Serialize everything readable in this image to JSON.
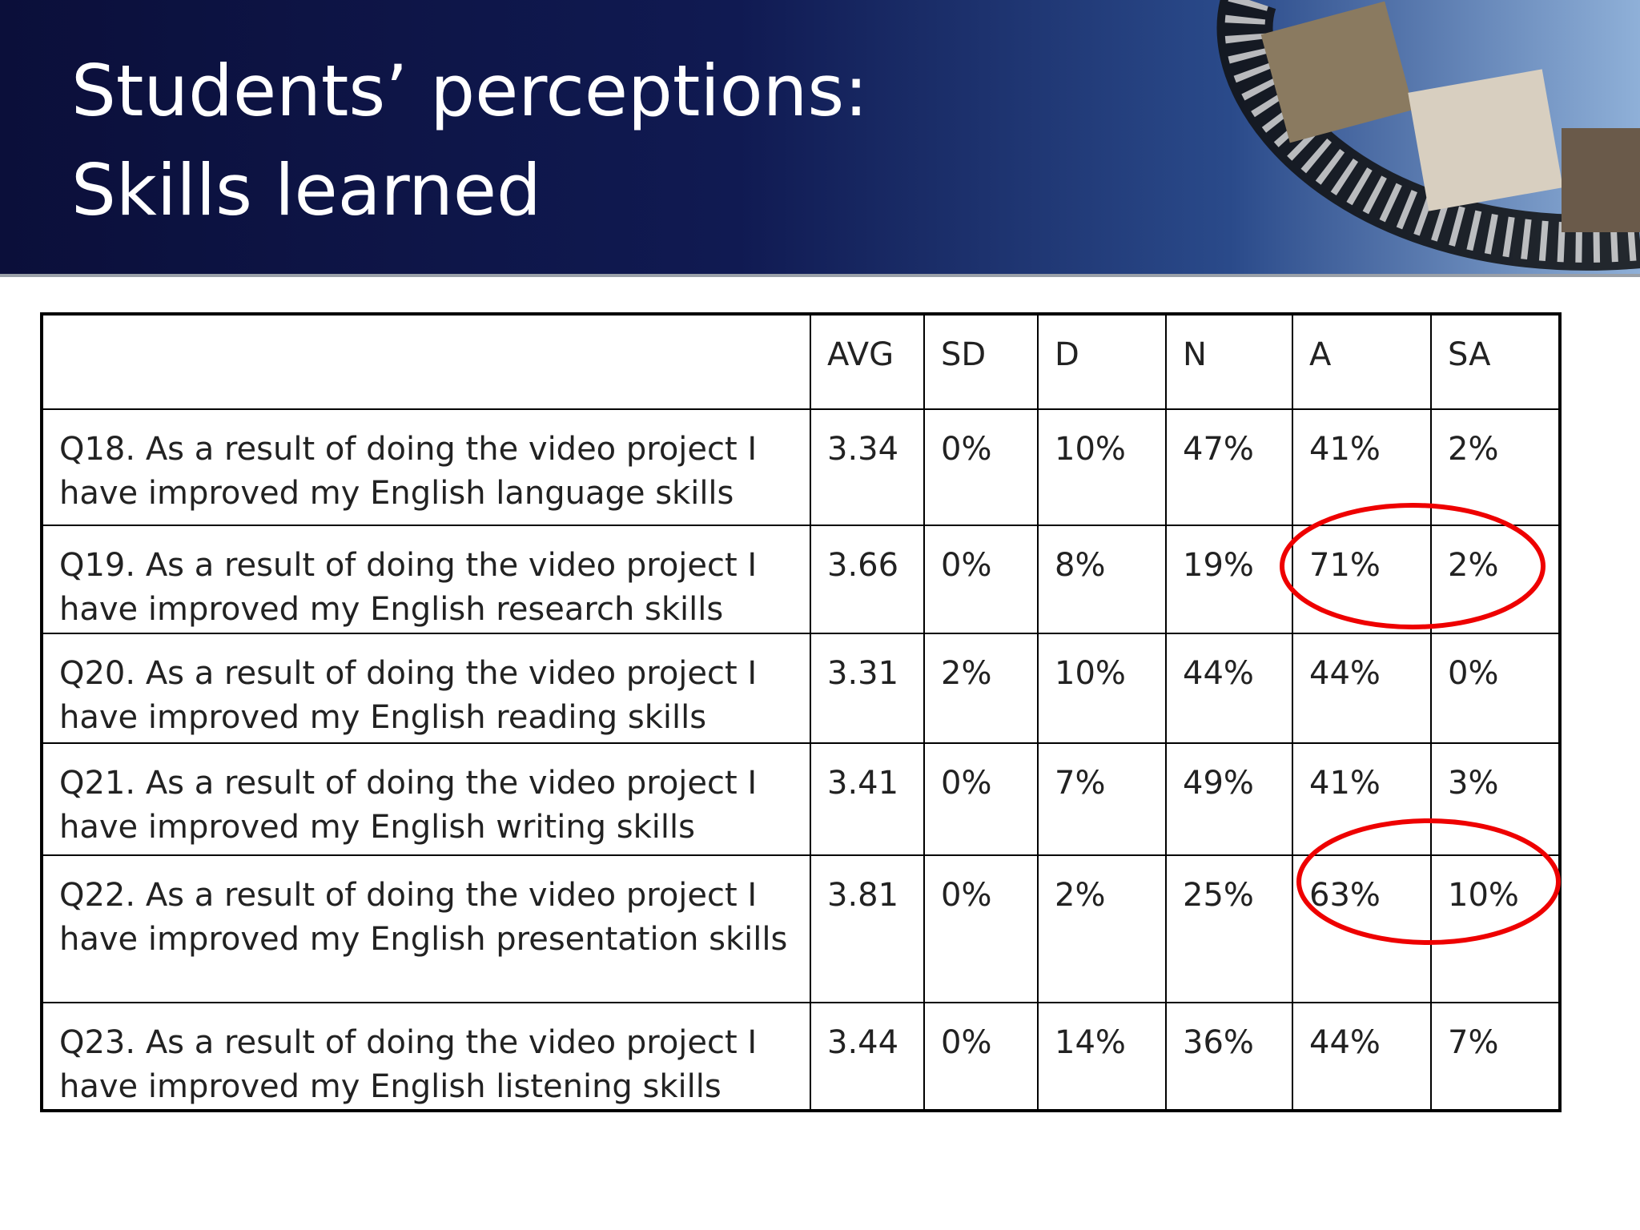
{
  "header": {
    "title": "Students’ perceptions: Skills learned"
  },
  "table": {
    "columns": [
      "AVG",
      "SD",
      "D",
      "N",
      "A",
      "SA"
    ],
    "rows": [
      [
        "Q18. As a result of doing the video project I have improved my English language skills",
        "3.34",
        "0%",
        "10%",
        "47%",
        "41%",
        "2%"
      ],
      [
        "Q19. As a result of doing the video project I have improved my English research skills",
        "3.66",
        "0%",
        "8%",
        "19%",
        "71%",
        "2%"
      ],
      [
        "Q20. As a result of doing the video project I have improved my English reading skills",
        "3.31",
        "2%",
        "10%",
        "44%",
        "44%",
        "0%"
      ],
      [
        "Q21. As a result of doing the video project I have improved my English writing skills",
        "3.41",
        "0%",
        "7%",
        "49%",
        "41%",
        "3%"
      ],
      [
        "Q22. As a result of doing the video project I have improved my English presentation skills",
        "3.81",
        "0%",
        "2%",
        "25%",
        "63%",
        "10%"
      ],
      [
        "Q23. As a result of doing the video project I have improved my English listening skills",
        "3.44",
        "0%",
        "14%",
        "36%",
        "44%",
        "7%"
      ]
    ]
  }
}
